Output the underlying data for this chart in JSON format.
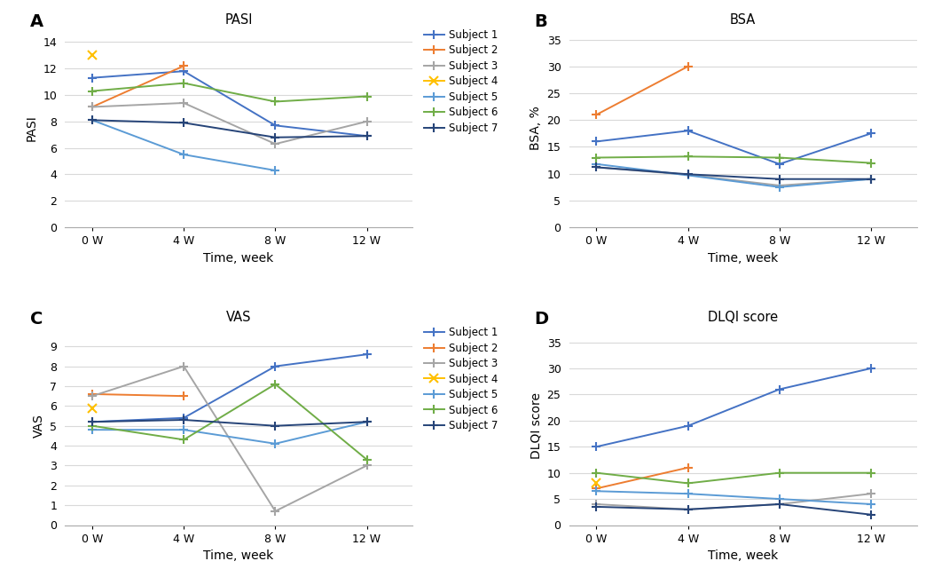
{
  "x_ticks": [
    0,
    4,
    8,
    12
  ],
  "x_tick_labels": [
    "0 W",
    "4 W",
    "8 W",
    "12 W"
  ],
  "subjects": [
    "Subject 1",
    "Subject 2",
    "Subject 3",
    "Subject 4",
    "Subject 5",
    "Subject 6",
    "Subject 7"
  ],
  "colors": [
    "#4472C4",
    "#ED7D31",
    "#A5A5A5",
    "#FFC000",
    "#5B9BD5",
    "#70AD47",
    "#264478"
  ],
  "markers": [
    "+",
    "+",
    "+",
    "x",
    "+",
    "+",
    "+"
  ],
  "PASI": {
    "title": "PASI",
    "ylabel": "PASI",
    "ylim": [
      0,
      15
    ],
    "yticks": [
      0,
      2,
      4,
      6,
      8,
      10,
      12,
      14
    ],
    "data": [
      [
        11.3,
        11.8,
        7.7,
        6.9
      ],
      [
        9.1,
        12.2,
        null,
        null
      ],
      [
        9.1,
        9.4,
        6.3,
        8.0
      ],
      [
        13.0,
        null,
        null,
        null
      ],
      [
        8.1,
        5.5,
        4.3,
        null
      ],
      [
        10.3,
        10.9,
        9.5,
        9.9
      ],
      [
        8.1,
        7.9,
        6.8,
        6.9
      ]
    ]
  },
  "BSA": {
    "title": "BSA",
    "ylabel": "BSA, %",
    "ylim": [
      0,
      37
    ],
    "yticks": [
      0,
      5,
      10,
      15,
      20,
      25,
      30,
      35
    ],
    "data": [
      [
        16.0,
        18.0,
        11.8,
        17.5
      ],
      [
        21.0,
        30.0,
        null,
        null
      ],
      [
        11.2,
        9.8,
        7.8,
        9.0
      ],
      [
        null,
        null,
        null,
        null
      ],
      [
        11.8,
        9.7,
        7.5,
        9.0
      ],
      [
        13.0,
        13.2,
        13.0,
        12.0
      ],
      [
        11.2,
        9.9,
        9.0,
        9.0
      ]
    ]
  },
  "VAS": {
    "title": "VAS",
    "ylabel": "VAS",
    "ylim": [
      0,
      10
    ],
    "yticks": [
      0,
      1,
      2,
      3,
      4,
      5,
      6,
      7,
      8,
      9
    ],
    "data": [
      [
        5.2,
        5.4,
        8.0,
        8.6
      ],
      [
        6.6,
        6.5,
        null,
        null
      ],
      [
        6.5,
        8.0,
        0.7,
        3.0
      ],
      [
        5.9,
        null,
        null,
        null
      ],
      [
        4.8,
        4.8,
        4.1,
        5.2
      ],
      [
        5.0,
        4.3,
        7.1,
        3.3
      ],
      [
        5.2,
        5.3,
        5.0,
        5.2
      ]
    ]
  },
  "DLQI": {
    "title": "DLQI score",
    "ylabel": "DLQI score",
    "ylim": [
      0,
      38
    ],
    "yticks": [
      0,
      5,
      10,
      15,
      20,
      25,
      30,
      35
    ],
    "data": [
      [
        15.0,
        19.0,
        26.0,
        30.0
      ],
      [
        7.0,
        11.0,
        null,
        null
      ],
      [
        4.0,
        3.0,
        4.0,
        6.0
      ],
      [
        8.0,
        null,
        null,
        null
      ],
      [
        6.5,
        6.0,
        5.0,
        4.0
      ],
      [
        10.0,
        8.0,
        10.0,
        10.0
      ],
      [
        3.5,
        3.0,
        4.0,
        2.0
      ]
    ]
  },
  "panel_labels": [
    "A",
    "B",
    "C",
    "D"
  ],
  "xlabel": "Time, week",
  "background_color": "#FFFFFF",
  "grid_color": "#D9D9D9",
  "legend_fontsize": 8.5,
  "tick_fontsize": 9,
  "label_fontsize": 10,
  "title_fontsize": 10.5
}
